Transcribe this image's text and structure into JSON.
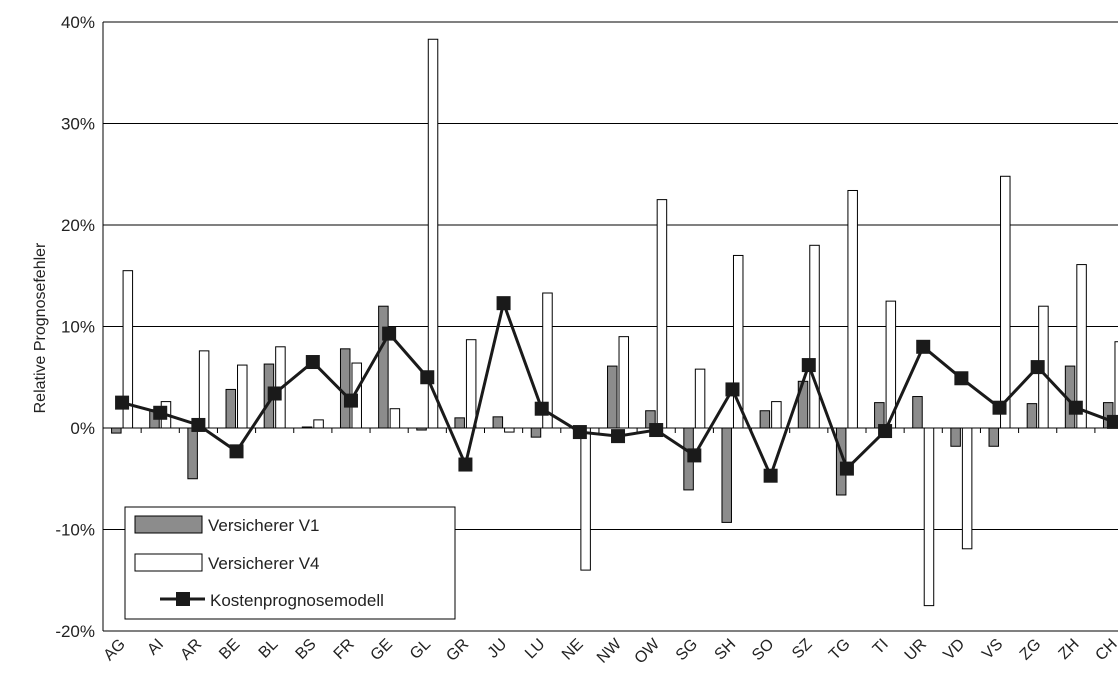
{
  "chart_data": {
    "type": "bar",
    "title": "",
    "xlabel": "",
    "ylabel": "Relative Prognosefehler",
    "ylim": [
      -20,
      40
    ],
    "yticks": [
      "-20%",
      "-10%",
      "0%",
      "10%",
      "20%",
      "30%",
      "40%"
    ],
    "ytick_values": [
      -20,
      -10,
      0,
      10,
      20,
      30,
      40
    ],
    "grid": true,
    "legend_position": "bottom-left",
    "categories": [
      "AG",
      "AI",
      "AR",
      "BE",
      "BL",
      "BS",
      "FR",
      "GE",
      "GL",
      "GR",
      "JU",
      "LU",
      "NE",
      "NW",
      "OW",
      "SG",
      "SH",
      "SO",
      "SZ",
      "TG",
      "TI",
      "UR",
      "VD",
      "VS",
      "ZG",
      "ZH",
      "CH"
    ],
    "series": [
      {
        "name": "Versicherer V1",
        "kind": "bar",
        "color": "#8c8c8c",
        "values": [
          -0.5,
          1.8,
          -5.0,
          3.8,
          6.3,
          0.1,
          7.8,
          12.0,
          -0.2,
          1.0,
          1.1,
          -0.9,
          null,
          6.1,
          1.7,
          -6.1,
          -9.3,
          1.7,
          4.6,
          -6.6,
          2.5,
          3.1,
          -1.8,
          -1.8,
          2.4,
          6.1,
          2.5
        ]
      },
      {
        "name": "Versicherer V4",
        "kind": "bar",
        "color": "#ffffff",
        "values": [
          15.5,
          2.6,
          7.6,
          6.2,
          8.0,
          0.8,
          6.4,
          1.9,
          38.3,
          8.7,
          -0.4,
          13.3,
          -14.0,
          9.0,
          22.5,
          5.8,
          17.0,
          2.6,
          18.0,
          23.4,
          12.5,
          -17.5,
          -11.9,
          24.8,
          12.0,
          16.1,
          8.5
        ]
      },
      {
        "name": "Kostenprognosemodell",
        "kind": "line",
        "color": "#1a1a1a",
        "values": [
          2.5,
          1.5,
          0.3,
          -2.3,
          3.4,
          6.5,
          2.7,
          9.3,
          5.0,
          -3.6,
          12.3,
          1.9,
          -0.4,
          -0.8,
          -0.2,
          -2.7,
          3.8,
          -4.7,
          6.2,
          -4.0,
          -0.3,
          8.0,
          4.9,
          2.0,
          6.0,
          2.0,
          0.6
        ]
      }
    ]
  }
}
